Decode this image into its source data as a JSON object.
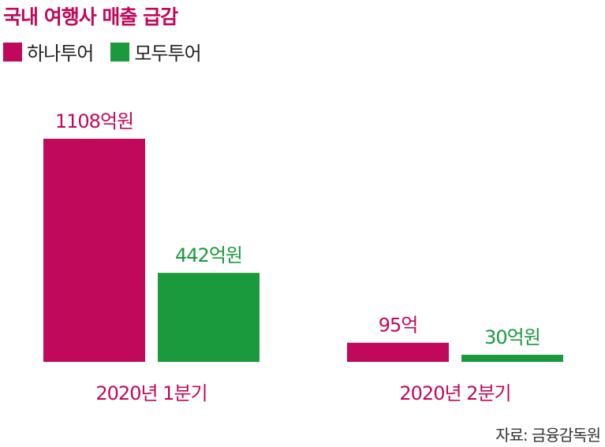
{
  "title": "국내 여행사 매출 급감",
  "source": "자료: 금융감독원",
  "colors": {
    "hana": "#c0095b",
    "modu": "#1a9a3c"
  },
  "chart_data": {
    "type": "bar",
    "categories": [
      "2020년 1분기",
      "2020년 2분기"
    ],
    "series": [
      {
        "name": "하나투어",
        "color": "#c0095b",
        "values": [
          1108,
          95
        ],
        "labels": [
          "1108억원",
          "95억"
        ]
      },
      {
        "name": "모두투어",
        "color": "#1a9a3c",
        "values": [
          442,
          30
        ],
        "labels": [
          "442억원",
          "30억원"
        ]
      }
    ],
    "unit": "억원",
    "legend": "top-left",
    "grid": false
  }
}
